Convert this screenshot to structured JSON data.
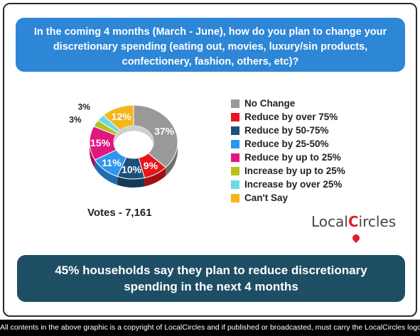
{
  "header": {
    "question": "In the coming 4 months (March - June), how do you plan to change your discretionary spending (eating out, movies, luxury/sin products, confectionery, fashion, others, etc)?"
  },
  "chart_data": {
    "type": "pie",
    "title": "",
    "categories": [
      "No Change",
      "Reduce by over 75%",
      "Reduce by 50-75%",
      "Reduce by 25-50%",
      "Reduce by up to 25%",
      "Increase by up to 25%",
      "Increase by over 25%",
      "Can't Say"
    ],
    "values": [
      37,
      9,
      10,
      11,
      15,
      3,
      3,
      12
    ],
    "value_labels": [
      "37%",
      "9%",
      "10%",
      "11%",
      "15%",
      "3%",
      "3%",
      "12%"
    ],
    "colors": [
      "#999999",
      "#e8141c",
      "#1d4f7a",
      "#2e96f0",
      "#e0177f",
      "#b5c21f",
      "#6fd6e8",
      "#f5b619"
    ],
    "legend_position": "right",
    "style": "donut-3d"
  },
  "votes_label": "Votes - 7,161",
  "logo": {
    "text_left": "Local",
    "text_c": "C",
    "text_right": "ircles"
  },
  "conclusion": "45% households say they plan to reduce discretionary spending in the next 4 months",
  "footer": "All contents in the above graphic is a copyright of LocalCircles and if published or broadcasted, must carry the LocalCircles logo along with it."
}
